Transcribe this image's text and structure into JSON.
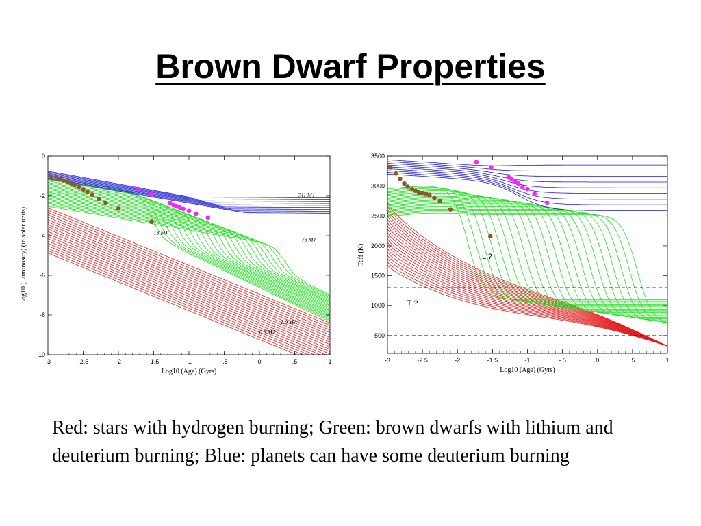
{
  "slide": {
    "title": "Brown Dwarf Properties",
    "caption": "Red:  stars with hydrogen burning; Green:  brown dwarfs with lithium and deuterium burning; Blue:  planets can have some deuterium burning"
  },
  "colors": {
    "red": "#e02020",
    "green": "#22dd22",
    "blue": "#1a1ad0",
    "magenta": "#ff22ff",
    "brown": "#8b5a2b"
  },
  "chart_data": [
    {
      "type": "line",
      "xlabel": "Log10 (Age) (Gyrs)",
      "ylabel": "Log10 (Luminosity) (in solar units)",
      "xlim": [
        -3,
        1
      ],
      "ylim": [
        -10,
        0
      ],
      "xticks": [
        -3,
        -2.5,
        -2,
        -1.5,
        -1,
        -0.5,
        0,
        0.5,
        1
      ],
      "xtick_labels": [
        "-3",
        "-2.5",
        "-2",
        "-1.5",
        "-1",
        "-.5",
        "0",
        ".5",
        "1"
      ],
      "yticks": [
        0,
        -2,
        -4,
        -6,
        -8,
        -10
      ],
      "ytick_labels": [
        "0",
        "-2",
        "-4",
        "-6",
        "-8",
        "-10"
      ],
      "annotations": [
        {
          "text": "211 MJ",
          "x": 0.55,
          "y": -2.05
        },
        {
          "text": "73 MJ",
          "x": 0.6,
          "y": -4.3
        },
        {
          "text": "13 MJ",
          "x": -1.5,
          "y": -3.95
        },
        {
          "text": "1.0 MJ",
          "x": 0.3,
          "y": -8.45
        },
        {
          "text": "0.3 MJ",
          "x": 0.0,
          "y": -8.95
        }
      ],
      "series": [
        {
          "color": "blue",
          "values_desc": "planet-mass tracks"
        },
        {
          "color": "green",
          "values_desc": "brown dwarf tracks"
        },
        {
          "color": "red",
          "values_desc": "stellar tracks"
        }
      ],
      "markers": {
        "magenta": [
          [
            -1.72,
            -1.65
          ],
          [
            -1.53,
            -1.92
          ],
          [
            -1.27,
            -2.35
          ],
          [
            -1.22,
            -2.45
          ],
          [
            -1.18,
            -2.52
          ],
          [
            -1.13,
            -2.58
          ],
          [
            -1.08,
            -2.65
          ],
          [
            -1.0,
            -2.75
          ],
          [
            -0.9,
            -2.9
          ],
          [
            -0.73,
            -3.1
          ]
        ],
        "brown": [
          [
            -2.95,
            -1.02
          ],
          [
            -2.88,
            -1.08
          ],
          [
            -2.83,
            -1.15
          ],
          [
            -2.78,
            -1.23
          ],
          [
            -2.72,
            -1.3
          ],
          [
            -2.67,
            -1.37
          ],
          [
            -2.62,
            -1.45
          ],
          [
            -2.56,
            -1.55
          ],
          [
            -2.5,
            -1.68
          ],
          [
            -2.44,
            -1.8
          ],
          [
            -2.37,
            -1.95
          ],
          [
            -2.28,
            -2.15
          ],
          [
            -2.18,
            -2.35
          ],
          [
            -2.0,
            -2.63
          ],
          [
            -1.53,
            -3.3
          ]
        ]
      }
    },
    {
      "type": "line",
      "xlabel": "Log10 (Age) (Gyrs)",
      "ylabel": "Teff (K)",
      "xlim": [
        -3,
        1
      ],
      "ylim": [
        200,
        3500
      ],
      "xticks": [
        -3,
        -2.5,
        -2,
        -1.5,
        -1,
        -0.5,
        0,
        0.5,
        1
      ],
      "xtick_labels": [
        "-3",
        "-2.5",
        "-2",
        "-1.5",
        "-1",
        "-.5",
        "0",
        ".5",
        "1"
      ],
      "yticks": [
        500,
        1000,
        1500,
        2000,
        2500,
        3000,
        3500
      ],
      "ytick_labels": [
        "500",
        "1000",
        "1500",
        "2000",
        "2500",
        "3000",
        "3500"
      ],
      "dashed_levels": [
        2200,
        1300,
        500
      ],
      "annotations": [
        {
          "text": "L ?",
          "x": -1.65,
          "y": 1780
        },
        {
          "text": "T ?",
          "x": -2.72,
          "y": 1000
        }
      ],
      "markers": {
        "magenta": [
          [
            -1.73,
            3400
          ],
          [
            -1.52,
            3310
          ],
          [
            -1.27,
            3150
          ],
          [
            -1.23,
            3120
          ],
          [
            -1.18,
            3080
          ],
          [
            -1.13,
            3040
          ],
          [
            -1.07,
            2980
          ],
          [
            -1.0,
            2950
          ],
          [
            -0.9,
            2870
          ],
          [
            -0.72,
            2720
          ]
        ],
        "brown": [
          [
            -2.96,
            3310
          ],
          [
            -2.88,
            3210
          ],
          [
            -2.82,
            3120
          ],
          [
            -2.76,
            3040
          ],
          [
            -2.71,
            2990
          ],
          [
            -2.65,
            2950
          ],
          [
            -2.6,
            2920
          ],
          [
            -2.55,
            2890
          ],
          [
            -2.5,
            2880
          ],
          [
            -2.45,
            2870
          ],
          [
            -2.4,
            2850
          ],
          [
            -2.33,
            2800
          ],
          [
            -2.25,
            2750
          ],
          [
            -2.1,
            2610
          ],
          [
            -1.53,
            2160
          ]
        ]
      }
    }
  ]
}
